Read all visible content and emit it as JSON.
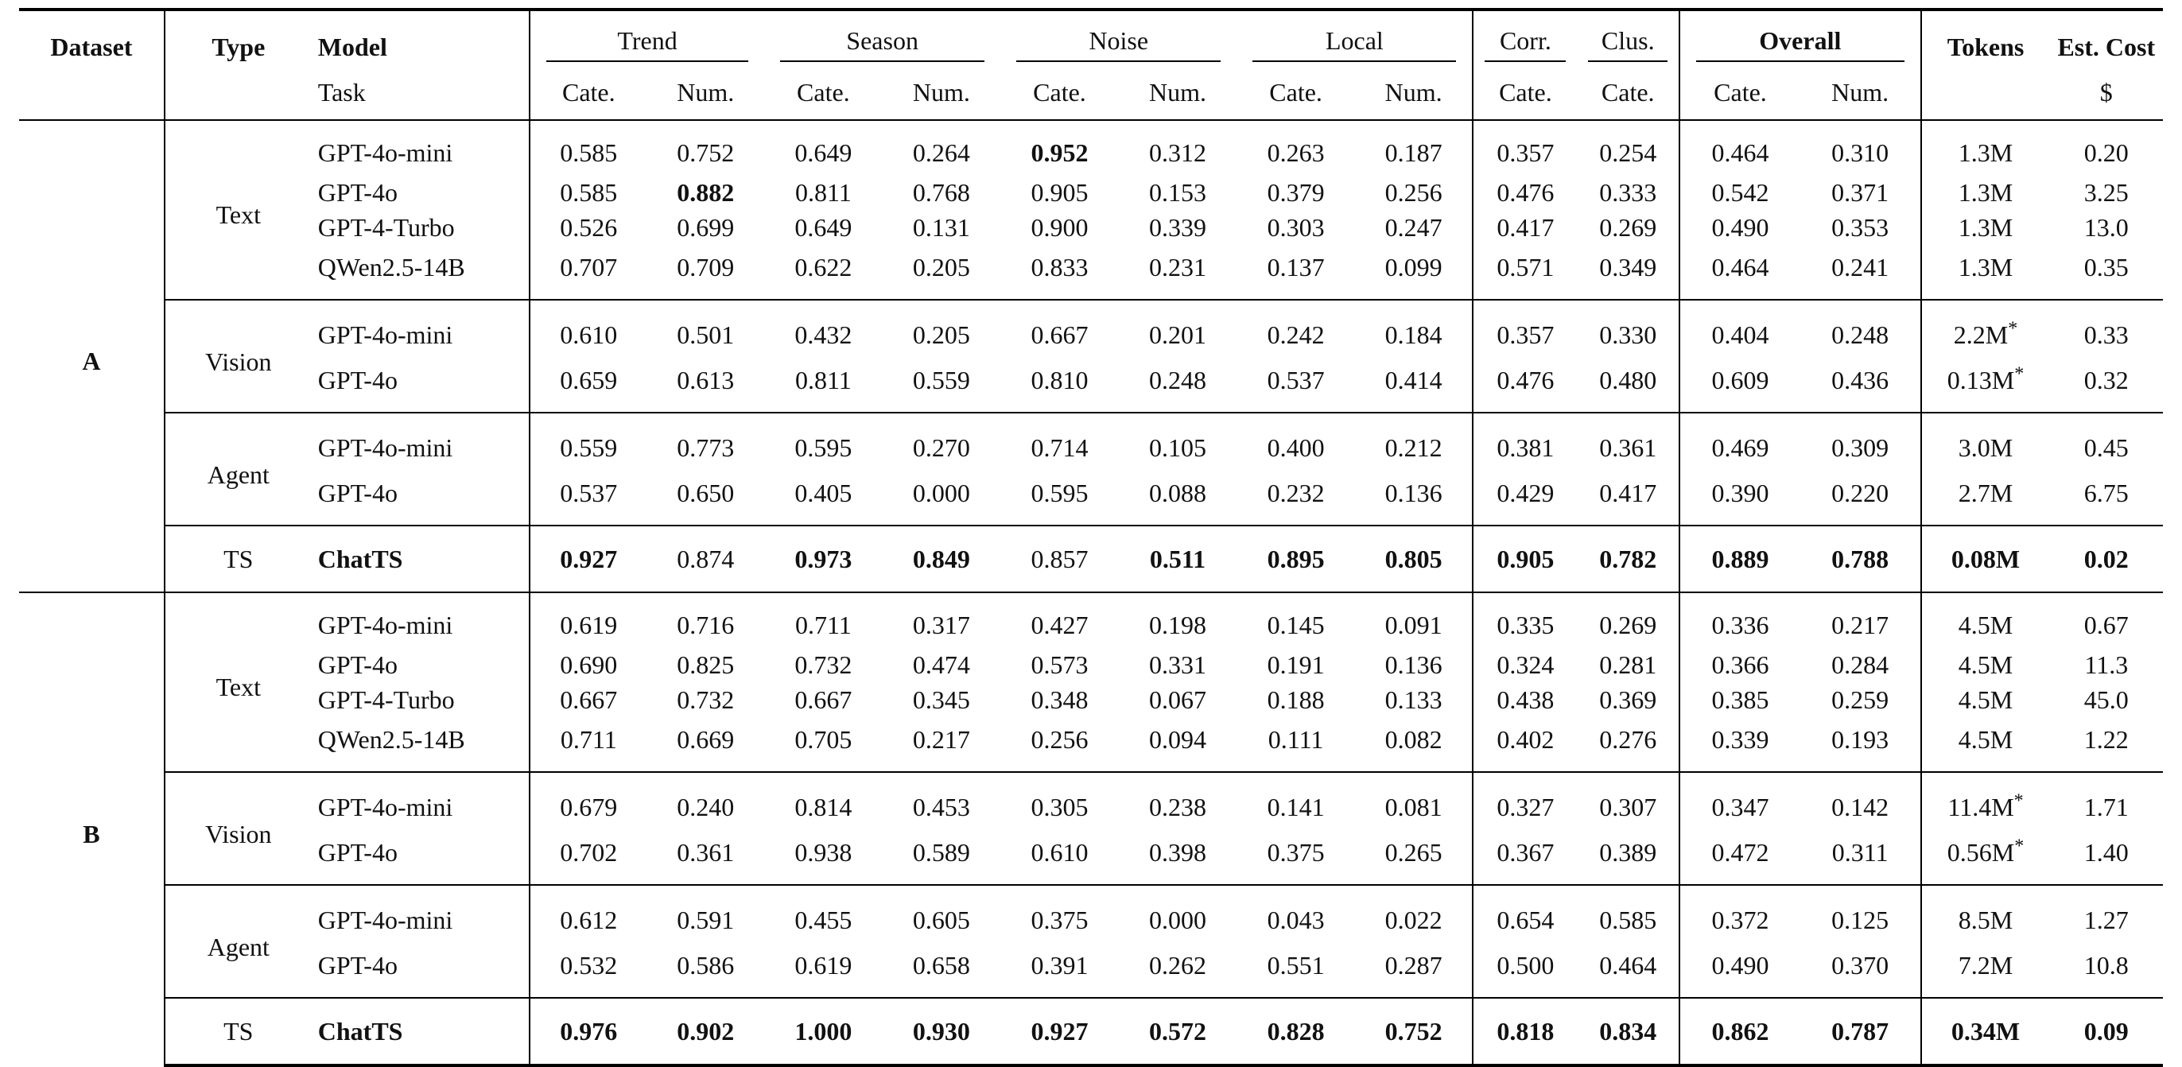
{
  "headers": {
    "dataset": "Dataset",
    "type": "Type",
    "model": "Model",
    "task": "Task",
    "trend": "Trend",
    "season": "Season",
    "noise": "Noise",
    "local": "Local",
    "corr": "Corr.",
    "clus": "Clus.",
    "overall": "Overall",
    "tokens": "Tokens",
    "est_cost": "Est. Cost",
    "cost_unit": "$",
    "cate": "Cate.",
    "num": "Num."
  },
  "datasets": [
    {
      "name": "A",
      "groups": [
        {
          "type": "Text",
          "rows": [
            {
              "model": "GPT-4o-mini",
              "values": [
                "0.585",
                "0.752",
                "0.649",
                "0.264",
                "0.952",
                "0.312",
                "0.263",
                "0.187",
                "0.357",
                "0.254",
                "0.464",
                "0.310"
              ],
              "tokens": "1.3M",
              "cost": "0.20",
              "bold": [
                4
              ]
            },
            {
              "model": "GPT-4o",
              "values": [
                "0.585",
                "0.882",
                "0.811",
                "0.768",
                "0.905",
                "0.153",
                "0.379",
                "0.256",
                "0.476",
                "0.333",
                "0.542",
                "0.371"
              ],
              "tokens": "1.3M",
              "cost": "3.25",
              "bold": [
                1
              ]
            },
            {
              "model": "GPT-4-Turbo",
              "values": [
                "0.526",
                "0.699",
                "0.649",
                "0.131",
                "0.900",
                "0.339",
                "0.303",
                "0.247",
                "0.417",
                "0.269",
                "0.490",
                "0.353"
              ],
              "tokens": "1.3M",
              "cost": "13.0",
              "bold": []
            },
            {
              "model": "QWen2.5-14B",
              "values": [
                "0.707",
                "0.709",
                "0.622",
                "0.205",
                "0.833",
                "0.231",
                "0.137",
                "0.099",
                "0.571",
                "0.349",
                "0.464",
                "0.241"
              ],
              "tokens": "1.3M",
              "cost": "0.35",
              "bold": []
            }
          ]
        },
        {
          "type": "Vision",
          "rows": [
            {
              "model": "GPT-4o-mini",
              "values": [
                "0.610",
                "0.501",
                "0.432",
                "0.205",
                "0.667",
                "0.201",
                "0.242",
                "0.184",
                "0.357",
                "0.330",
                "0.404",
                "0.248"
              ],
              "tokens": "2.2M",
              "tokens_mark": "*",
              "cost": "0.33",
              "bold": []
            },
            {
              "model": "GPT-4o",
              "values": [
                "0.659",
                "0.613",
                "0.811",
                "0.559",
                "0.810",
                "0.248",
                "0.537",
                "0.414",
                "0.476",
                "0.480",
                "0.609",
                "0.436"
              ],
              "tokens": "0.13M",
              "tokens_mark": "*",
              "cost": "0.32",
              "bold": []
            }
          ]
        },
        {
          "type": "Agent",
          "rows": [
            {
              "model": "GPT-4o-mini",
              "values": [
                "0.559",
                "0.773",
                "0.595",
                "0.270",
                "0.714",
                "0.105",
                "0.400",
                "0.212",
                "0.381",
                "0.361",
                "0.469",
                "0.309"
              ],
              "tokens": "3.0M",
              "cost": "0.45",
              "bold": []
            },
            {
              "model": "GPT-4o",
              "values": [
                "0.537",
                "0.650",
                "0.405",
                "0.000",
                "0.595",
                "0.088",
                "0.232",
                "0.136",
                "0.429",
                "0.417",
                "0.390",
                "0.220"
              ],
              "tokens": "2.7M",
              "cost": "6.75",
              "bold": []
            }
          ]
        },
        {
          "type": "TS",
          "rows": [
            {
              "model": "ChatTS",
              "values": [
                "0.927",
                "0.874",
                "0.973",
                "0.849",
                "0.857",
                "0.511",
                "0.895",
                "0.805",
                "0.905",
                "0.782",
                "0.889",
                "0.788"
              ],
              "tokens": "0.08M",
              "cost": "0.02",
              "bold": [
                0,
                2,
                3,
                5,
                6,
                7,
                8,
                9,
                10,
                11,
                "tokens",
                "cost",
                "model"
              ]
            }
          ]
        }
      ]
    },
    {
      "name": "B",
      "groups": [
        {
          "type": "Text",
          "rows": [
            {
              "model": "GPT-4o-mini",
              "values": [
                "0.619",
                "0.716",
                "0.711",
                "0.317",
                "0.427",
                "0.198",
                "0.145",
                "0.091",
                "0.335",
                "0.269",
                "0.336",
                "0.217"
              ],
              "tokens": "4.5M",
              "cost": "0.67",
              "bold": []
            },
            {
              "model": "GPT-4o",
              "values": [
                "0.690",
                "0.825",
                "0.732",
                "0.474",
                "0.573",
                "0.331",
                "0.191",
                "0.136",
                "0.324",
                "0.281",
                "0.366",
                "0.284"
              ],
              "tokens": "4.5M",
              "cost": "11.3",
              "bold": []
            },
            {
              "model": "GPT-4-Turbo",
              "values": [
                "0.667",
                "0.732",
                "0.667",
                "0.345",
                "0.348",
                "0.067",
                "0.188",
                "0.133",
                "0.438",
                "0.369",
                "0.385",
                "0.259"
              ],
              "tokens": "4.5M",
              "cost": "45.0",
              "bold": []
            },
            {
              "model": "QWen2.5-14B",
              "values": [
                "0.711",
                "0.669",
                "0.705",
                "0.217",
                "0.256",
                "0.094",
                "0.111",
                "0.082",
                "0.402",
                "0.276",
                "0.339",
                "0.193"
              ],
              "tokens": "4.5M",
              "cost": "1.22",
              "bold": []
            }
          ]
        },
        {
          "type": "Vision",
          "rows": [
            {
              "model": "GPT-4o-mini",
              "values": [
                "0.679",
                "0.240",
                "0.814",
                "0.453",
                "0.305",
                "0.238",
                "0.141",
                "0.081",
                "0.327",
                "0.307",
                "0.347",
                "0.142"
              ],
              "tokens": "11.4M",
              "tokens_mark": "*",
              "cost": "1.71",
              "bold": []
            },
            {
              "model": "GPT-4o",
              "values": [
                "0.702",
                "0.361",
                "0.938",
                "0.589",
                "0.610",
                "0.398",
                "0.375",
                "0.265",
                "0.367",
                "0.389",
                "0.472",
                "0.311"
              ],
              "tokens": "0.56M",
              "tokens_mark": "*",
              "cost": "1.40",
              "bold": []
            }
          ]
        },
        {
          "type": "Agent",
          "rows": [
            {
              "model": "GPT-4o-mini",
              "values": [
                "0.612",
                "0.591",
                "0.455",
                "0.605",
                "0.375",
                "0.000",
                "0.043",
                "0.022",
                "0.654",
                "0.585",
                "0.372",
                "0.125"
              ],
              "tokens": "8.5M",
              "cost": "1.27",
              "bold": []
            },
            {
              "model": "GPT-4o",
              "values": [
                "0.532",
                "0.586",
                "0.619",
                "0.658",
                "0.391",
                "0.262",
                "0.551",
                "0.287",
                "0.500",
                "0.464",
                "0.490",
                "0.370"
              ],
              "tokens": "7.2M",
              "cost": "10.8",
              "bold": []
            }
          ]
        },
        {
          "type": "TS",
          "rows": [
            {
              "model": "ChatTS",
              "values": [
                "0.976",
                "0.902",
                "1.000",
                "0.930",
                "0.927",
                "0.572",
                "0.828",
                "0.752",
                "0.818",
                "0.834",
                "0.862",
                "0.787"
              ],
              "tokens": "0.34M",
              "cost": "0.09",
              "bold": [
                0,
                1,
                2,
                3,
                4,
                5,
                6,
                7,
                8,
                9,
                10,
                11,
                "tokens",
                "cost",
                "model"
              ]
            }
          ]
        }
      ]
    }
  ]
}
